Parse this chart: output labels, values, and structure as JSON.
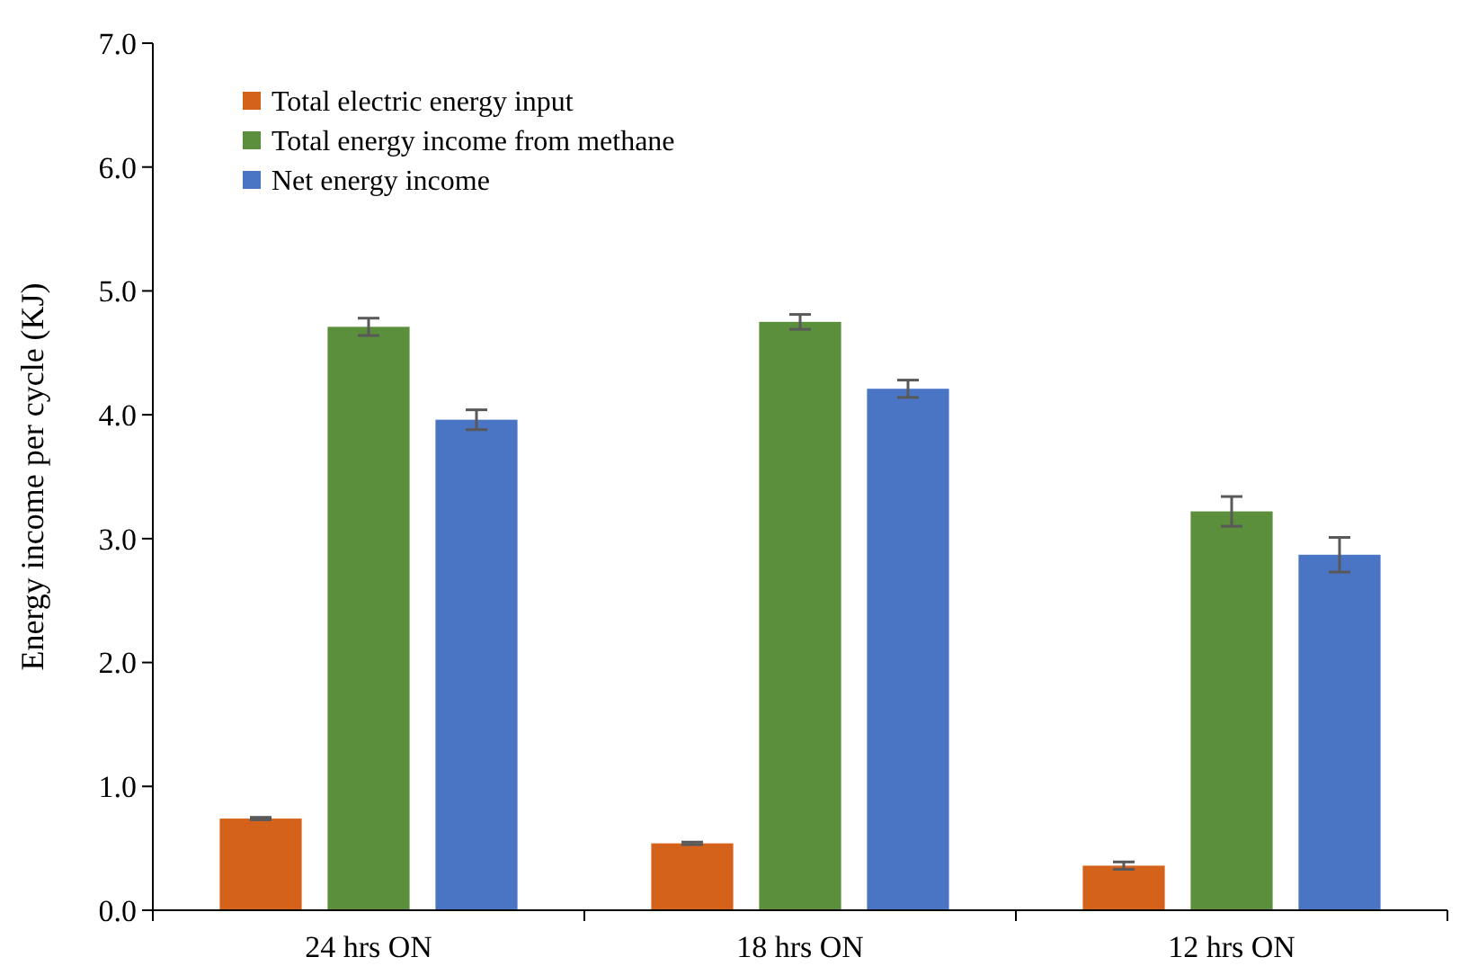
{
  "chart_data": {
    "type": "bar",
    "ylabel": "Energy income per cycle (KJ)",
    "categories": [
      "24 hrs ON",
      "18 hrs ON",
      "12 hrs ON"
    ],
    "series": [
      {
        "name": "Total electric energy input",
        "color": "#d5621a",
        "values": [
          0.74,
          0.54,
          0.36
        ],
        "errors": [
          0.01,
          0.01,
          0.03
        ]
      },
      {
        "name": "Total energy income from methane",
        "color": "#5b8f3c",
        "values": [
          4.71,
          4.75,
          3.22
        ],
        "errors": [
          0.07,
          0.06,
          0.12
        ]
      },
      {
        "name": "Net energy income",
        "color": "#4a74c4",
        "values": [
          3.96,
          4.21,
          2.87
        ],
        "errors": [
          0.08,
          0.07,
          0.14
        ]
      }
    ],
    "ylim": [
      0,
      7
    ],
    "yticks": [
      {
        "value": 0,
        "label": "0.0"
      },
      {
        "value": 1,
        "label": "1.0"
      },
      {
        "value": 2,
        "label": "2.0"
      },
      {
        "value": 3,
        "label": "3.0"
      },
      {
        "value": 4,
        "label": "4.0"
      },
      {
        "value": 5,
        "label": "5.0"
      },
      {
        "value": 6,
        "label": "6.0"
      },
      {
        "value": 7,
        "label": "7.0"
      }
    ],
    "grid": false,
    "legend": "top left"
  }
}
